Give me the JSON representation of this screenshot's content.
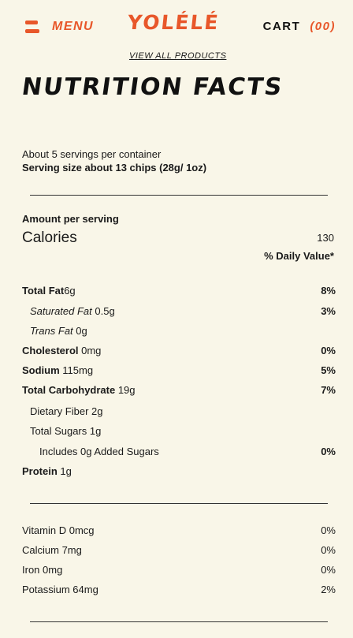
{
  "header": {
    "menu_label": "MENU",
    "logo": "YOLÉLÉ",
    "cart_label": "CART",
    "cart_count": "(00)",
    "accent": "#e8572a"
  },
  "view_all": "VIEW ALL PRODUCTS",
  "title": "NUTRITION FACTS",
  "servings": "About 5 servings per container",
  "serving_size": "Serving size about 13 chips (28g/ 1oz)",
  "amount_per_serving": "Amount per serving",
  "calories": {
    "label": "Calories",
    "value": "130"
  },
  "dv_header": "% Daily Value*",
  "nutrients": [
    {
      "label": "Total Fat",
      "amount": "6g",
      "pct": "8%"
    },
    {
      "label": "Saturated Fat",
      "amount": " 0.5g",
      "pct": "3%"
    },
    {
      "label": "Trans Fat",
      "amount": " 0g",
      "pct": ""
    },
    {
      "label": "Cholesterol",
      "amount": " 0mg",
      "pct": "0%"
    },
    {
      "label": "Sodium",
      "amount": " 115mg",
      "pct": "5%"
    },
    {
      "label": "Total Carbohydrate",
      "amount": " 19g",
      "pct": "7%"
    },
    {
      "label": "Dietary Fiber 2g",
      "pct": ""
    },
    {
      "label": "Total Sugars 1g",
      "pct": ""
    },
    {
      "label": "Includes 0g Added Sugars",
      "pct": "0%"
    },
    {
      "label": "Protein",
      "amount": " 1g",
      "pct": ""
    }
  ],
  "vitamins": [
    {
      "label": "Vitamin D 0mcg",
      "pct": "0%"
    },
    {
      "label": "Calcium 7mg",
      "pct": "0%"
    },
    {
      "label": "Iron 0mg",
      "pct": "0%"
    },
    {
      "label": "Potassium 64mg",
      "pct": "2%"
    }
  ]
}
